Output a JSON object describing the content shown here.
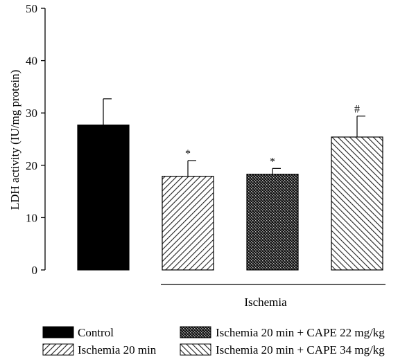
{
  "chart_data": {
    "type": "bar",
    "ylabel": "LDH activity (IU/mg protein)",
    "ylim": [
      0,
      50
    ],
    "yticks": [
      0,
      10,
      20,
      30,
      40,
      50
    ],
    "grid": false,
    "legend_placement": "bottom",
    "group_label": "Ischemia",
    "group_bracket_covers": [
      "Ischemia 20 min",
      "Ischemia 20 min + CAPE 22 mg/kg",
      "Ischemia 20 min + CAPE 34 mg/kg"
    ],
    "series": [
      {
        "name": "Control",
        "value": 27.7,
        "error": 5.0,
        "annotation": "",
        "fill": "solid-black"
      },
      {
        "name": "Ischemia 20 min",
        "value": 17.9,
        "error": 3.0,
        "annotation": "*",
        "fill": "diagonal-hatch-forward"
      },
      {
        "name": "Ischemia 20 min + CAPE 22 mg/kg",
        "value": 18.3,
        "error": 1.1,
        "annotation": "*",
        "fill": "crosshatch-dense"
      },
      {
        "name": "Ischemia 20 min + CAPE 34 mg/kg",
        "value": 25.4,
        "error": 4.0,
        "annotation": "#",
        "fill": "diagonal-hatch-backward"
      }
    ]
  }
}
